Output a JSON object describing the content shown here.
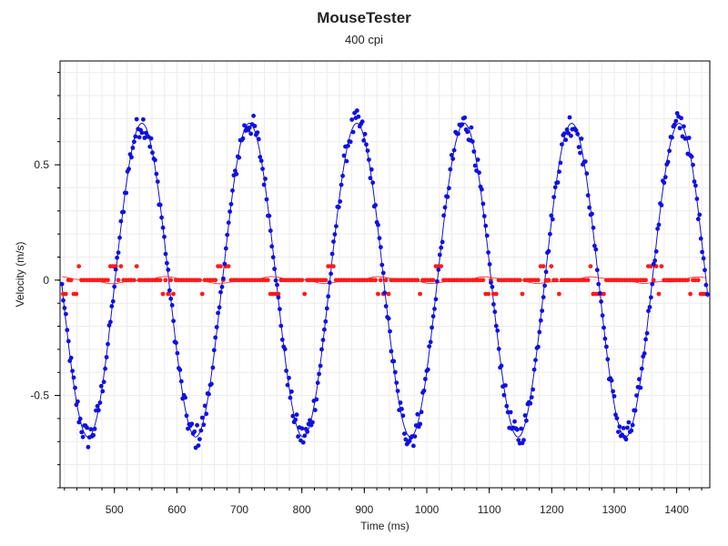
{
  "header": {
    "title": "MouseTester",
    "subtitle": "400 cpi"
  },
  "chart_data": {
    "type": "scatter",
    "title": "MouseTester",
    "subtitle": "400 cpi",
    "xlabel": "Time (ms)",
    "ylabel": "Velocity (m/s)",
    "xlim": [
      413,
      1453
    ],
    "ylim": [
      -0.9,
      0.95
    ],
    "xticks": [
      500,
      600,
      700,
      800,
      900,
      1000,
      1100,
      1200,
      1300,
      1400
    ],
    "yticks": [
      -0.5,
      0,
      0.5
    ],
    "ytick_labels": [
      "-0.5",
      "0",
      "0.5"
    ],
    "grid": true,
    "colors": {
      "blue": "#1010e0",
      "red": "#ff1a1a",
      "grid": "#ececec"
    },
    "series": [
      {
        "marker": "dot",
        "color": "#1010e0",
        "with_trend_line": true,
        "sine_model": {
          "amplitude": 0.68,
          "period_ms": 172,
          "phase_peak_ms": 544,
          "noise": 0.04
        }
      },
      {
        "marker": "dot",
        "color": "#ff1a1a",
        "with_trend_line": true,
        "levels": [
          -0.06,
          0,
          0.06
        ],
        "notes": "mostly 0 with steps at ±0.06 near zero-crossings"
      }
    ]
  }
}
